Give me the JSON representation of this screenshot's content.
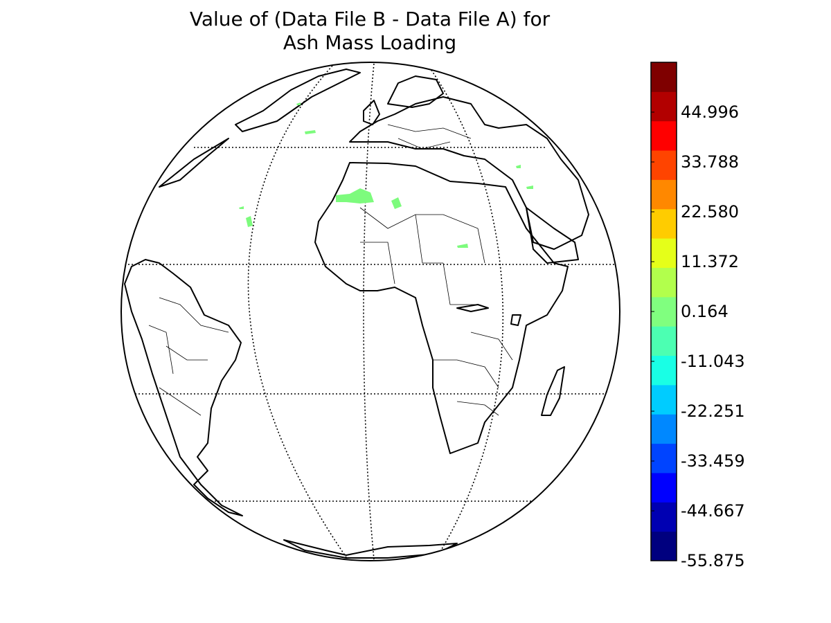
{
  "title": {
    "line1": "Value of (Data File B - Data File A) for",
    "line2": "Ash Mass Loading"
  },
  "colorbar": {
    "ticks": [
      "44.996",
      "33.788",
      "22.580",
      "11.372",
      "0.164",
      "-11.043",
      "-22.251",
      "-33.459",
      "-44.667",
      "-55.875"
    ],
    "min": -55.875,
    "max": 56.2,
    "colormap": "jet",
    "colors": [
      "#00007f",
      "#0000b2",
      "#0000ff",
      "#0044ff",
      "#0088ff",
      "#00ccff",
      "#19ffe5",
      "#4cffb2",
      "#80ff7f",
      "#b2ff4c",
      "#e5ff19",
      "#ffcc00",
      "#ff8800",
      "#ff4400",
      "#ff0000",
      "#b20000",
      "#7f0000"
    ]
  },
  "map": {
    "projection": "orthographic",
    "coastline_color": "#000000",
    "data_color": "#7dfb7d"
  }
}
